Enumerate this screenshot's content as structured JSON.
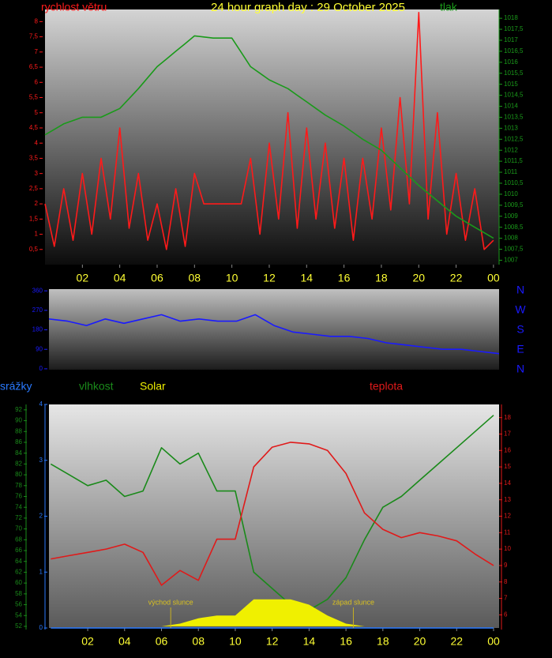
{
  "chart_data": [
    {
      "type": "line",
      "title": "24 hour graph day : 29 October 2025",
      "x": [
        0,
        0.5,
        1,
        1.5,
        2,
        2.5,
        3,
        3.5,
        4,
        4.5,
        5,
        5.5,
        6,
        6.5,
        7,
        7.5,
        8,
        8.5,
        9,
        9.5,
        10,
        10.5,
        11,
        11.5,
        12,
        12.5,
        13,
        13.5,
        14,
        14.5,
        15,
        15.5,
        16,
        16.5,
        17,
        17.5,
        18,
        18.5,
        19,
        19.5,
        20,
        20.5,
        21,
        21.5,
        22,
        22.5,
        23,
        23.5,
        24
      ],
      "xlim": [
        0,
        24.3
      ],
      "xticks": [
        {
          "value": 2,
          "label": "02"
        },
        {
          "value": 4,
          "label": "04"
        },
        {
          "value": 6,
          "label": "06"
        },
        {
          "value": 8,
          "label": "08"
        },
        10,
        12,
        14,
        16,
        18,
        20,
        22,
        {
          "value": 24,
          "label": "00"
        }
      ],
      "ylim": [
        0,
        8.4
      ],
      "yticks": [
        {
          "value": 0.5,
          "label": "0,5"
        },
        1,
        {
          "value": 1.5,
          "label": "1,5"
        },
        2,
        {
          "value": 2.5,
          "label": "2,5"
        },
        3,
        {
          "value": 3.5,
          "label": "3,5"
        },
        4,
        {
          "value": 4.5,
          "label": "4,5"
        },
        5,
        {
          "value": 5.5,
          "label": "5,5"
        },
        6,
        {
          "value": 6.5,
          "label": "6,5"
        },
        7,
        {
          "value": 7.5,
          "label": "7,5"
        },
        8
      ],
      "y2lim": [
        1006.8,
        1018.4
      ],
      "y2ticks": [
        1007,
        {
          "value": 1007.5,
          "label": "1007,5"
        },
        1008,
        {
          "value": 1008.5,
          "label": "1008,5"
        },
        1009,
        {
          "value": 1009.5,
          "label": "1009,5"
        },
        1010,
        {
          "value": 1010.5,
          "label": "1010,5"
        },
        1011,
        {
          "value": 1011.5,
          "label": "1011,5"
        },
        1012,
        {
          "value": 1012.5,
          "label": "1012,5"
        },
        1013,
        {
          "value": 1013.5,
          "label": "1013,5"
        },
        1014,
        {
          "value": 1014.5,
          "label": "1014,5"
        },
        1015,
        {
          "value": 1015.5,
          "label": "1015,5"
        },
        1016,
        {
          "value": 1016.5,
          "label": "1016,5"
        },
        1017,
        {
          "value": 1017.5,
          "label": "1017,5"
        },
        1018
      ],
      "series": [
        {
          "name": "rychlost větru",
          "color": "#ff1a1a",
          "values": [
            2,
            0.6,
            2.5,
            0.8,
            3,
            1,
            3.5,
            1.5,
            4.5,
            1.2,
            3,
            0.8,
            2,
            0.5,
            2.5,
            0.6,
            3,
            2,
            2,
            2,
            2,
            2,
            3.5,
            1,
            4,
            1.5,
            5,
            1.2,
            4.5,
            1.5,
            4,
            1.2,
            3.5,
            0.8,
            3.5,
            1.5,
            4.5,
            1.8,
            5.5,
            2,
            8.3,
            1.5,
            5,
            1,
            3,
            0.8,
            2.5,
            0.5,
            0.8
          ]
        },
        {
          "name": "tlak",
          "color": "#1a9a1a",
          "axis": "y2",
          "values": [
            1012.7,
            1012.95,
            1013.2,
            1013.35,
            1013.5,
            1013.5,
            1013.5,
            1013.7,
            1013.9,
            1014.35,
            1014.8,
            1015.3,
            1015.8,
            1016.15,
            1016.5,
            1016.85,
            1017.2,
            1017.15,
            1017.1,
            1017.1,
            1017.1,
            1016.45,
            1015.8,
            1015.5,
            1015.2,
            1015.0,
            1014.8,
            1014.5,
            1014.2,
            1013.9,
            1013.6,
            1013.35,
            1013.1,
            1012.8,
            1012.5,
            1012.25,
            1012,
            1011.6,
            1011.2,
            1010.8,
            1010.4,
            1010.05,
            1009.7,
            1009.35,
            1009,
            1008.75,
            1008.5,
            1008.25,
            1008
          ]
        }
      ]
    },
    {
      "type": "line",
      "x": [
        0,
        1,
        2,
        3,
        4,
        5,
        6,
        7,
        8,
        9,
        10,
        11,
        12,
        13,
        14,
        15,
        16,
        17,
        18,
        19,
        20,
        21,
        22,
        23,
        24
      ],
      "xlim": [
        0,
        24
      ],
      "ylim": [
        -4,
        368
      ],
      "yticks": [
        0,
        90,
        180,
        270,
        360
      ],
      "direction_labels": [
        "N",
        "W",
        "S",
        "E",
        "N"
      ],
      "series": [
        {
          "name": "",
          "color": "#1a1aff",
          "values": [
            230,
            220,
            200,
            230,
            210,
            230,
            250,
            220,
            230,
            220,
            220,
            250,
            200,
            170,
            160,
            150,
            150,
            140,
            120,
            110,
            100,
            90,
            90,
            80,
            70
          ]
        }
      ]
    },
    {
      "type": "line",
      "x": [
        0,
        1,
        2,
        3,
        4,
        5,
        6,
        7,
        8,
        9,
        10,
        11,
        12,
        13,
        14,
        15,
        16,
        17,
        18,
        19,
        20,
        21,
        22,
        23,
        24
      ],
      "xlim": [
        -0.1,
        24.3
      ],
      "xticks": [
        {
          "value": 2,
          "label": "02"
        },
        {
          "value": 4,
          "label": "04"
        },
        {
          "value": 6,
          "label": "06"
        },
        {
          "value": 8,
          "label": "08"
        },
        10,
        12,
        14,
        16,
        18,
        20,
        22,
        {
          "value": 24,
          "label": "00"
        }
      ],
      "ylim": [
        51.7,
        93
      ],
      "yticks": [
        52,
        54,
        56,
        58,
        60,
        62,
        64,
        66,
        68,
        70,
        72,
        74,
        76,
        78,
        80,
        82,
        84,
        86,
        88,
        90,
        92
      ],
      "y2lim": [
        5.2,
        18.8
      ],
      "y2ticks": [
        6,
        7,
        8,
        9,
        10,
        11,
        12,
        13,
        14,
        15,
        16,
        17,
        18
      ],
      "y3lim": [
        0,
        4
      ],
      "y3ticks": [
        0,
        1,
        2,
        3,
        4
      ],
      "annotations": [
        {
          "text": "východ slunce",
          "x": 6.5
        },
        {
          "text": "západ slunce",
          "x": 16.4
        }
      ],
      "series": [
        {
          "name": "srážky",
          "color": "#2a7aff",
          "axis": "y3",
          "values": [
            0,
            0,
            0,
            0,
            0,
            0,
            0,
            0,
            0,
            0,
            0,
            0,
            0,
            0,
            0,
            0,
            0,
            0,
            0,
            0,
            0,
            0,
            0,
            0,
            0
          ]
        },
        {
          "name": "vlhkost",
          "color": "#1a8a1a",
          "values": [
            82,
            80,
            78,
            79,
            76,
            77,
            85,
            82,
            84,
            77,
            77,
            62,
            59,
            56,
            55,
            57,
            61,
            68,
            74,
            76,
            79,
            82,
            85,
            88,
            91
          ]
        },
        {
          "name": "Solar",
          "color": "#f0f000",
          "type": "area",
          "values": [
            52,
            52,
            52,
            52,
            52,
            52,
            52,
            52.5,
            53.5,
            54,
            54,
            57,
            57,
            57,
            56,
            54,
            52.5,
            52,
            52,
            52,
            52,
            52,
            52,
            52,
            52
          ]
        },
        {
          "name": "teplota",
          "color": "#e01a1a",
          "axis": "y2",
          "values": [
            9.4,
            9.6,
            9.8,
            10,
            10.3,
            9.8,
            7.8,
            8.7,
            8.1,
            10.6,
            10.6,
            15,
            16.2,
            16.5,
            16.4,
            16,
            14.6,
            12.2,
            11.2,
            10.7,
            11,
            10.8,
            10.5,
            9.7,
            9
          ]
        }
      ]
    }
  ]
}
